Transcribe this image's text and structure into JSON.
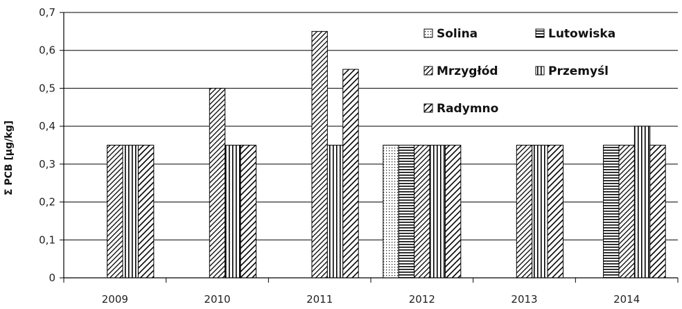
{
  "chart_data": {
    "type": "bar",
    "title": "",
    "xlabel": "",
    "ylabel": "Σ PCB  [μg/kg]",
    "categories": [
      "2009",
      "2010",
      "2011",
      "2012",
      "2013",
      "2014"
    ],
    "ylim": [
      0,
      0.7
    ],
    "yticks": [
      "0",
      "0,1",
      "0,2",
      "0,3",
      "0,4",
      "0,5",
      "0,6",
      "0,7"
    ],
    "grid": true,
    "legend_position": "top-right",
    "series": [
      {
        "name": "Solina",
        "pattern": "dots",
        "values": [
          null,
          null,
          null,
          0.35,
          null,
          null
        ]
      },
      {
        "name": "Lutowiska",
        "pattern": "horizontal",
        "values": [
          null,
          null,
          null,
          0.35,
          null,
          0.35
        ]
      },
      {
        "name": "Mrzygłód",
        "pattern": "diagonal",
        "values": [
          0.35,
          0.5,
          0.65,
          0.35,
          0.35,
          0.35
        ]
      },
      {
        "name": "Przemyśl",
        "pattern": "vertical",
        "values": [
          0.35,
          0.35,
          0.35,
          0.35,
          0.35,
          0.4
        ]
      },
      {
        "name": "Radymno",
        "pattern": "diagonal-wide",
        "values": [
          0.35,
          0.35,
          0.55,
          0.35,
          0.35,
          0.35
        ]
      }
    ],
    "colors": {
      "stroke": "#000000",
      "grid": "#000000",
      "fill": "#ffffff"
    }
  }
}
